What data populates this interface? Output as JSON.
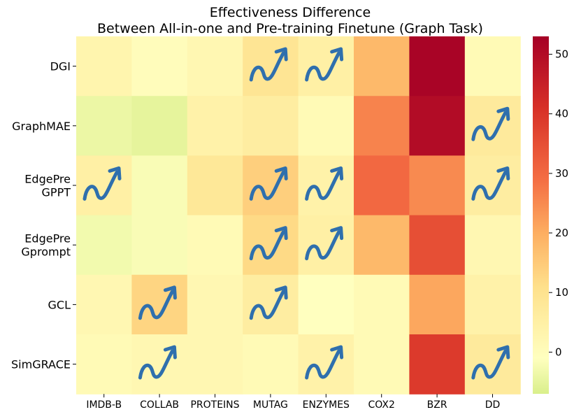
{
  "chart_data": {
    "type": "heatmap",
    "title_lines": [
      "Effectiveness Difference",
      "Between All-in-one and Pre-training Finetune (Graph Task)"
    ],
    "row_labels": [
      [
        "DGI"
      ],
      [
        "GraphMAE"
      ],
      [
        "EdgePre",
        "GPPT"
      ],
      [
        "EdgePre",
        "Gprompt"
      ],
      [
        "GCL"
      ],
      [
        "SimGRACE"
      ]
    ],
    "column_labels": [
      "IMDB-B",
      "COLLAB",
      "PROTEINS",
      "MUTAG",
      "ENZYMES",
      "COX2",
      "BZR",
      "DD"
    ],
    "values": [
      [
        3,
        0,
        2,
        9,
        5,
        18,
        52,
        1
      ],
      [
        -4,
        -5,
        4,
        6,
        1,
        26,
        50,
        7
      ],
      [
        5,
        -2,
        8,
        14,
        4,
        30,
        25,
        6
      ],
      [
        -3,
        -2,
        1,
        12,
        5,
        18,
        35,
        2
      ],
      [
        2,
        13,
        2,
        6,
        -1,
        1,
        21,
        4
      ],
      [
        1,
        2,
        2,
        1,
        4,
        1,
        39,
        7
      ]
    ],
    "arrow_marks": [
      [
        false,
        false,
        false,
        true,
        true,
        false,
        false,
        false
      ],
      [
        false,
        false,
        false,
        false,
        false,
        false,
        false,
        true
      ],
      [
        true,
        false,
        false,
        true,
        true,
        false,
        false,
        true
      ],
      [
        false,
        false,
        false,
        true,
        true,
        false,
        false,
        false
      ],
      [
        false,
        true,
        false,
        true,
        false,
        false,
        false,
        false
      ],
      [
        false,
        true,
        false,
        false,
        true,
        false,
        false,
        true
      ]
    ],
    "colormap": "RdYlGn_r",
    "vmin": -7,
    "vmax": 53,
    "colorbar_ticks": [
      0,
      10,
      20,
      30,
      40,
      50
    ],
    "arrow_color": "#2f6fad"
  }
}
